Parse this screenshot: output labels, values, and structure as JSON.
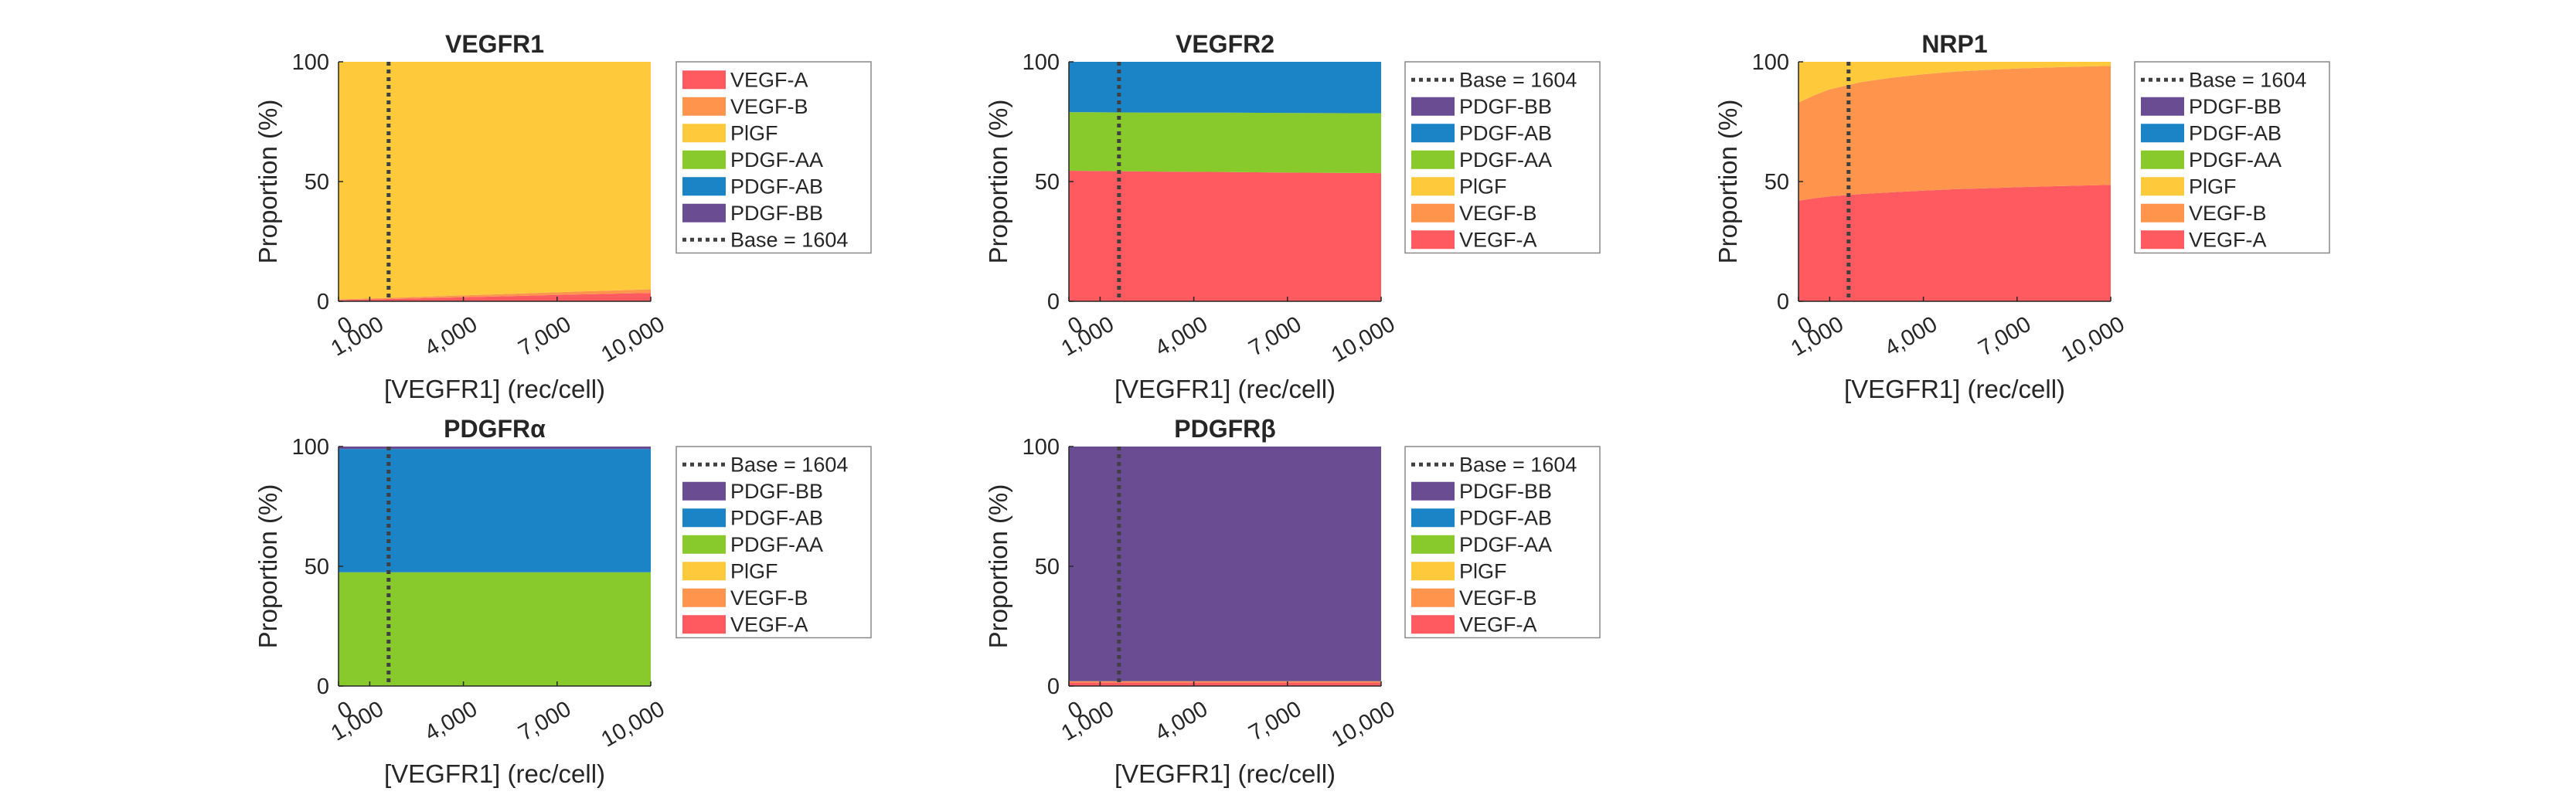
{
  "colors": {
    "VEGF-A": "#ff5a5f",
    "VEGF-B": "#ff944d",
    "PlGF": "#ffc93c",
    "PDGF-AA": "#88c92b",
    "PDGF-AB": "#1a84c7",
    "PDGF-BB": "#6a4c93",
    "base_line": "#404040"
  },
  "chart_data": [
    {
      "type": "area",
      "title": "VEGFR1",
      "xlabel": "[VEGFR1] (rec/cell)",
      "ylabel": "Proportion (%)",
      "xlim": [
        0,
        10000
      ],
      "ylim": [
        0,
        100
      ],
      "xticks": [
        0,
        1000,
        4000,
        7000,
        10000
      ],
      "xtick_labels": [
        "0",
        "1,000",
        "4,000",
        "7,000",
        "10,000"
      ],
      "yticks": [
        0,
        50,
        100
      ],
      "x": [
        0,
        2500,
        5000,
        7500,
        10000
      ],
      "series": [
        {
          "name": "VEGF-A",
          "values": [
            0.5,
            1.2,
            2.0,
            2.8,
            3.5
          ]
        },
        {
          "name": "VEGF-B",
          "values": [
            0.3,
            0.6,
            0.9,
            1.2,
            1.5
          ]
        },
        {
          "name": "PlGF",
          "values": [
            99.2,
            98.2,
            97.1,
            96.0,
            95.0
          ]
        },
        {
          "name": "PDGF-AA",
          "values": [
            0,
            0,
            0,
            0,
            0
          ]
        },
        {
          "name": "PDGF-AB",
          "values": [
            0,
            0,
            0,
            0,
            0
          ]
        },
        {
          "name": "PDGF-BB",
          "values": [
            0,
            0,
            0,
            0,
            0
          ]
        }
      ],
      "legend_order": [
        "VEGF-A",
        "VEGF-B",
        "PlGF",
        "PDGF-AA",
        "PDGF-AB",
        "PDGF-BB",
        "Base = 1604"
      ],
      "base_line": {
        "label": "Base = 1604",
        "x": 1604
      },
      "legend": "outside-right"
    },
    {
      "type": "area",
      "title": "VEGFR2",
      "xlabel": "[VEGFR1] (rec/cell)",
      "ylabel": "Proportion (%)",
      "xlim": [
        0,
        10000
      ],
      "ylim": [
        0,
        100
      ],
      "xticks": [
        0,
        1000,
        4000,
        7000,
        10000
      ],
      "xtick_labels": [
        "0",
        "1,000",
        "4,000",
        "7,000",
        "10,000"
      ],
      "yticks": [
        0,
        50,
        100
      ],
      "x": [
        0,
        2500,
        5000,
        7500,
        10000
      ],
      "series": [
        {
          "name": "VEGF-A",
          "values": [
            54.5,
            54.2,
            54.0,
            53.7,
            53.5
          ]
        },
        {
          "name": "VEGF-B",
          "values": [
            0,
            0,
            0,
            0,
            0
          ]
        },
        {
          "name": "PlGF",
          "values": [
            0,
            0,
            0,
            0,
            0
          ]
        },
        {
          "name": "PDGF-AA",
          "values": [
            24.5,
            24.6,
            24.8,
            24.9,
            25.0
          ]
        },
        {
          "name": "PDGF-AB",
          "values": [
            21.0,
            21.2,
            21.2,
            21.4,
            21.5
          ]
        },
        {
          "name": "PDGF-BB",
          "values": [
            0,
            0,
            0,
            0,
            0
          ]
        }
      ],
      "legend_order": [
        "Base = 1604",
        "PDGF-BB",
        "PDGF-AB",
        "PDGF-AA",
        "PlGF",
        "VEGF-B",
        "VEGF-A"
      ],
      "base_line": {
        "label": "Base = 1604",
        "x": 1604
      },
      "legend": "outside-right"
    },
    {
      "type": "area",
      "title": "NRP1",
      "xlabel": "[VEGFR1] (rec/cell)",
      "ylabel": "Proportion (%)",
      "xlim": [
        0,
        10000
      ],
      "ylim": [
        0,
        100
      ],
      "xticks": [
        0,
        1000,
        4000,
        7000,
        10000
      ],
      "xtick_labels": [
        "0",
        "1,000",
        "4,000",
        "7,000",
        "10,000"
      ],
      "yticks": [
        0,
        50,
        100
      ],
      "x": [
        0,
        500,
        1000,
        2000,
        3000,
        4000,
        5000,
        6000,
        7000,
        8000,
        9000,
        10000
      ],
      "series": [
        {
          "name": "VEGF-A",
          "values": [
            42,
            43,
            43.8,
            44.8,
            45.5,
            46.2,
            46.8,
            47.2,
            47.6,
            48,
            48.3,
            48.6
          ]
        },
        {
          "name": "VEGF-B",
          "values": [
            41,
            43,
            44.7,
            46.7,
            47.9,
            48.6,
            49.1,
            49.4,
            49.6,
            49.6,
            49.7,
            49.7
          ]
        },
        {
          "name": "PlGF",
          "values": [
            17,
            14,
            11.5,
            8.5,
            6.6,
            5.2,
            4.1,
            3.4,
            2.8,
            2.4,
            2.0,
            1.7
          ]
        },
        {
          "name": "PDGF-AA",
          "values": [
            0,
            0,
            0,
            0,
            0,
            0,
            0,
            0,
            0,
            0,
            0,
            0
          ]
        },
        {
          "name": "PDGF-AB",
          "values": [
            0,
            0,
            0,
            0,
            0,
            0,
            0,
            0,
            0,
            0,
            0,
            0
          ]
        },
        {
          "name": "PDGF-BB",
          "values": [
            0,
            0,
            0,
            0,
            0,
            0,
            0,
            0,
            0,
            0,
            0,
            0
          ]
        }
      ],
      "legend_order": [
        "Base = 1604",
        "PDGF-BB",
        "PDGF-AB",
        "PDGF-AA",
        "PlGF",
        "VEGF-B",
        "VEGF-A"
      ],
      "base_line": {
        "label": "Base = 1604",
        "x": 1604
      },
      "legend": "outside-right"
    },
    {
      "type": "area",
      "title": "PDGFRα",
      "xlabel": "[VEGFR1] (rec/cell)",
      "ylabel": "Proportion (%)",
      "xlim": [
        0,
        10000
      ],
      "ylim": [
        0,
        100
      ],
      "xticks": [
        0,
        1000,
        4000,
        7000,
        10000
      ],
      "xtick_labels": [
        "0",
        "1,000",
        "4,000",
        "7,000",
        "10,000"
      ],
      "yticks": [
        0,
        50,
        100
      ],
      "x": [
        0,
        2500,
        5000,
        7500,
        10000
      ],
      "series": [
        {
          "name": "VEGF-A",
          "values": [
            0,
            0,
            0,
            0,
            0
          ]
        },
        {
          "name": "VEGF-B",
          "values": [
            0,
            0,
            0,
            0,
            0
          ]
        },
        {
          "name": "PlGF",
          "values": [
            0,
            0,
            0,
            0,
            0
          ]
        },
        {
          "name": "PDGF-AA",
          "values": [
            47.5,
            47.5,
            47.5,
            47.5,
            47.5
          ]
        },
        {
          "name": "PDGF-AB",
          "values": [
            51.5,
            51.5,
            51.5,
            51.5,
            51.5
          ]
        },
        {
          "name": "PDGF-BB",
          "values": [
            1.0,
            1.0,
            1.0,
            1.0,
            1.0
          ]
        }
      ],
      "legend_order": [
        "Base = 1604",
        "PDGF-BB",
        "PDGF-AB",
        "PDGF-AA",
        "PlGF",
        "VEGF-B",
        "VEGF-A"
      ],
      "base_line": {
        "label": "Base = 1604",
        "x": 1604
      },
      "legend": "outside-right"
    },
    {
      "type": "area",
      "title": "PDGFRβ",
      "xlabel": "[VEGFR1] (rec/cell)",
      "ylabel": "Proportion (%)",
      "xlim": [
        0,
        10000
      ],
      "ylim": [
        0,
        100
      ],
      "xticks": [
        0,
        1000,
        4000,
        7000,
        10000
      ],
      "xtick_labels": [
        "0",
        "1,000",
        "4,000",
        "7,000",
        "10,000"
      ],
      "yticks": [
        0,
        50,
        100
      ],
      "x": [
        0,
        2500,
        5000,
        7500,
        10000
      ],
      "series": [
        {
          "name": "VEGF-A",
          "values": [
            1.5,
            1.5,
            1.5,
            1.5,
            1.5
          ]
        },
        {
          "name": "VEGF-B",
          "values": [
            0.5,
            0.5,
            0.5,
            0.5,
            0.5
          ]
        },
        {
          "name": "PlGF",
          "values": [
            0,
            0,
            0,
            0,
            0
          ]
        },
        {
          "name": "PDGF-AA",
          "values": [
            0,
            0,
            0,
            0,
            0
          ]
        },
        {
          "name": "PDGF-AB",
          "values": [
            0,
            0,
            0,
            0,
            0
          ]
        },
        {
          "name": "PDGF-BB",
          "values": [
            98,
            98,
            98,
            98,
            98
          ]
        }
      ],
      "legend_order": [
        "Base = 1604",
        "PDGF-BB",
        "PDGF-AB",
        "PDGF-AA",
        "PlGF",
        "VEGF-B",
        "VEGF-A"
      ],
      "base_line": {
        "label": "Base = 1604",
        "x": 1604
      },
      "legend": "outside-right"
    }
  ]
}
